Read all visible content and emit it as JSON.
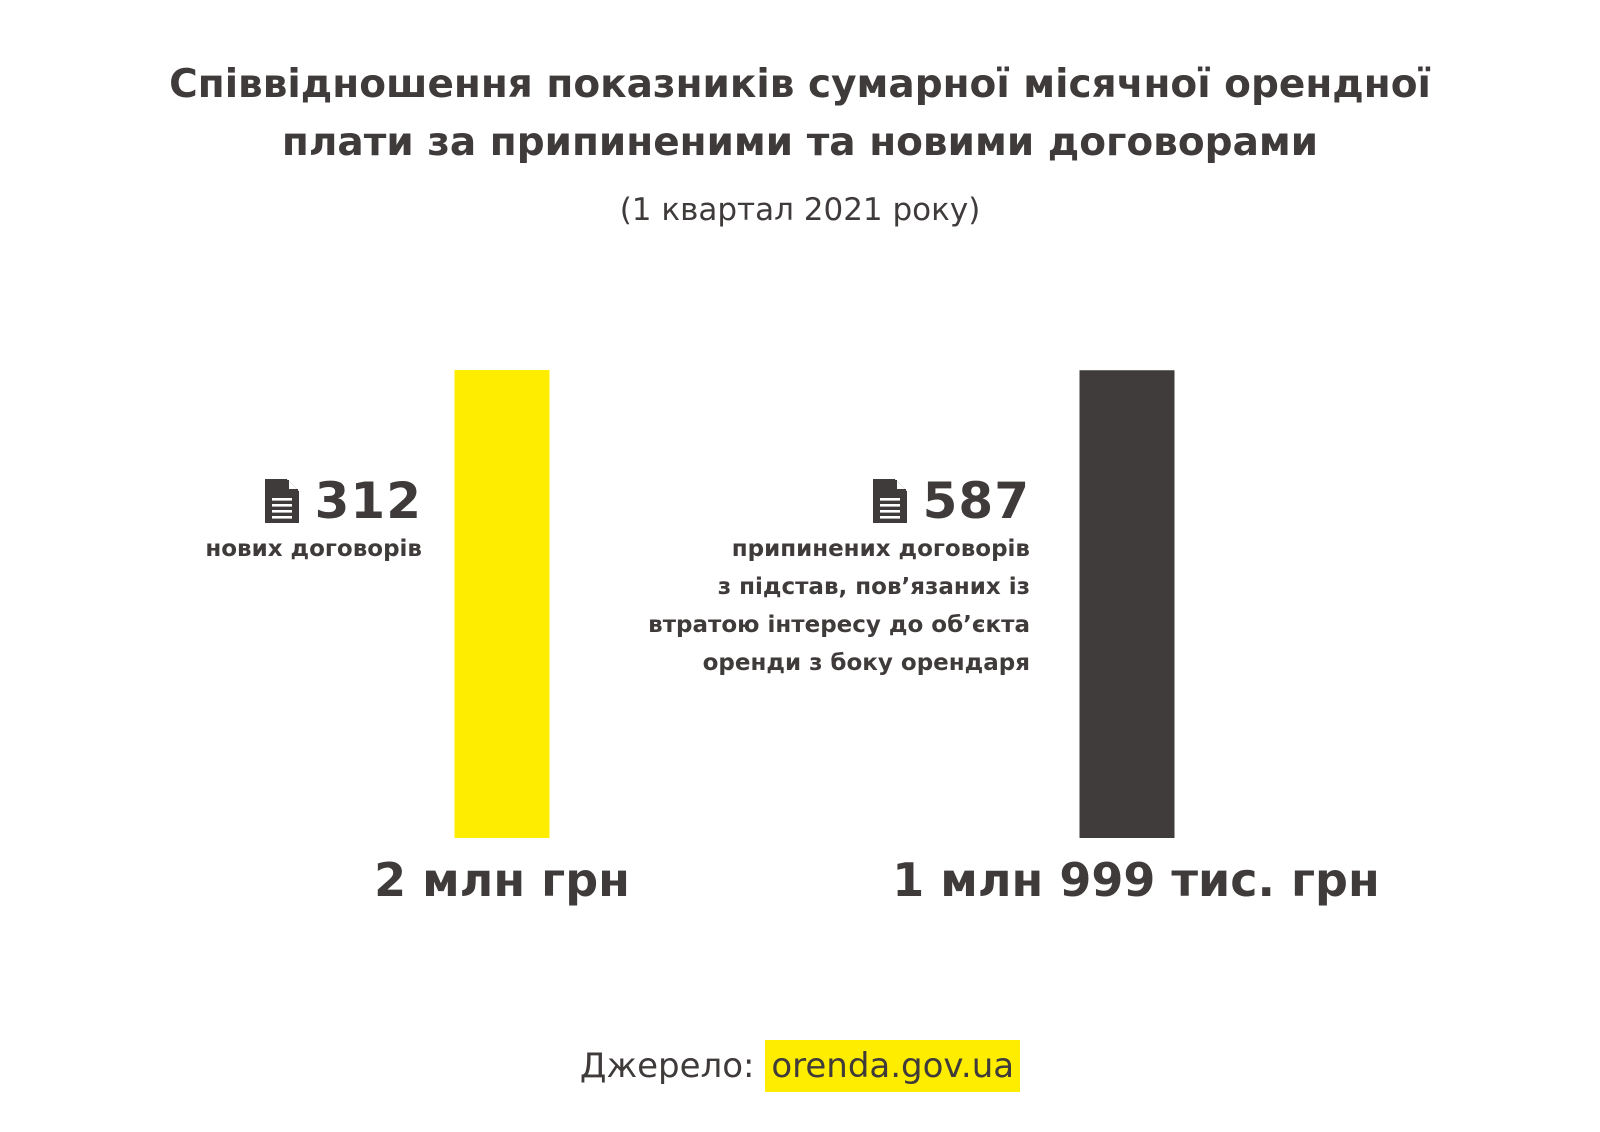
{
  "title_lines": [
    "Співвідношення показників сумарної місячної орендної",
    "плати за припиненими та новими договорами"
  ],
  "subtitle": "(1 квартал 2021 року)",
  "source": {
    "label": "Джерело:",
    "link": "orenda.gov.ua",
    "highlight_color": "#ffed00"
  },
  "chart_data": {
    "type": "bar",
    "title": "Співвідношення показників сумарної місячної орендної плати за припиненими та новими договорами",
    "subtitle": "(1 квартал 2021 року)",
    "unit": "тис. грн",
    "categories": [
      "нових договорів",
      "припинених договорів"
    ],
    "values": [
      2000,
      1999
    ],
    "value_labels": [
      "2 млн грн",
      "1 млн 999 тис. грн"
    ],
    "ylim": [
      0,
      2000
    ],
    "colors": [
      "#ffed00",
      "#403c3b"
    ],
    "grid": false,
    "groups": [
      {
        "count": "312",
        "icon": "document-icon",
        "description_lines": [
          "нових договорів"
        ]
      },
      {
        "count": "587",
        "icon": "document-icon",
        "description_lines": [
          "припинених договорів",
          "з підстав, пов’язаних із",
          "втратою інтересу до об’єкта",
          "оренди з боку орендаря"
        ]
      }
    ]
  }
}
